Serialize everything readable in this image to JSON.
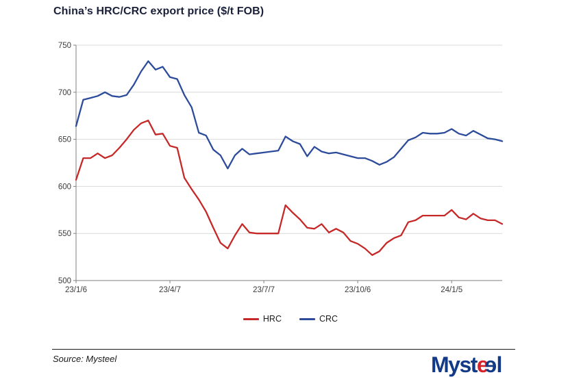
{
  "title": "China’s HRC/CRC export price ($/t FOB)",
  "chart_data": {
    "type": "line",
    "x_unit": "weekly",
    "n_points": 60,
    "x_tick_positions": [
      0,
      13,
      26,
      39,
      52
    ],
    "x_tick_labels": [
      "23/1/6",
      "23/4/7",
      "23/7/7",
      "23/10/6",
      "24/1/5"
    ],
    "ylim": [
      500,
      750
    ],
    "y_ticks": [
      500,
      550,
      600,
      650,
      700,
      750
    ],
    "grid": "horizontal",
    "legend_position": "bottom-center",
    "series": [
      {
        "name": "HRC",
        "color": "#c62828",
        "values": [
          607,
          630,
          630,
          635,
          630,
          633,
          641,
          650,
          660,
          667,
          670,
          655,
          656,
          643,
          641,
          609,
          597,
          586,
          573,
          556,
          540,
          534,
          548,
          560,
          551,
          550,
          550,
          550,
          550,
          580,
          572,
          565,
          556,
          555,
          560,
          551,
          555,
          551,
          542,
          539,
          534,
          527,
          531,
          540,
          545,
          548,
          562,
          564,
          569,
          569,
          569,
          569,
          575,
          567,
          565,
          571,
          566,
          564,
          564,
          560
        ]
      },
      {
        "name": "CRC",
        "color": "#2d4b9b",
        "values": [
          664,
          692,
          694,
          696,
          700,
          696,
          695,
          697,
          708,
          722,
          733,
          724,
          727,
          716,
          714,
          697,
          684,
          657,
          654,
          639,
          633,
          619,
          633,
          640,
          634,
          635,
          636,
          637,
          638,
          653,
          648,
          645,
          632,
          642,
          637,
          635,
          636,
          634,
          632,
          630,
          630,
          627,
          623,
          626,
          631,
          640,
          649,
          652,
          657,
          656,
          656,
          657,
          661,
          656,
          654,
          659,
          655,
          651,
          650,
          648
        ]
      }
    ]
  },
  "footer": {
    "source": "Source: Mysteel",
    "logo": {
      "pre": "Myst",
      "e1": "e",
      "e2": "e",
      "post": "l"
    }
  },
  "colors": {
    "grid": "#d9d9d9",
    "axis": "#7f7f7f",
    "tick_label": "#3b3b3b",
    "title": "#1a1f3a",
    "logo_navy": "#123a86",
    "logo_red": "#d8232a"
  }
}
